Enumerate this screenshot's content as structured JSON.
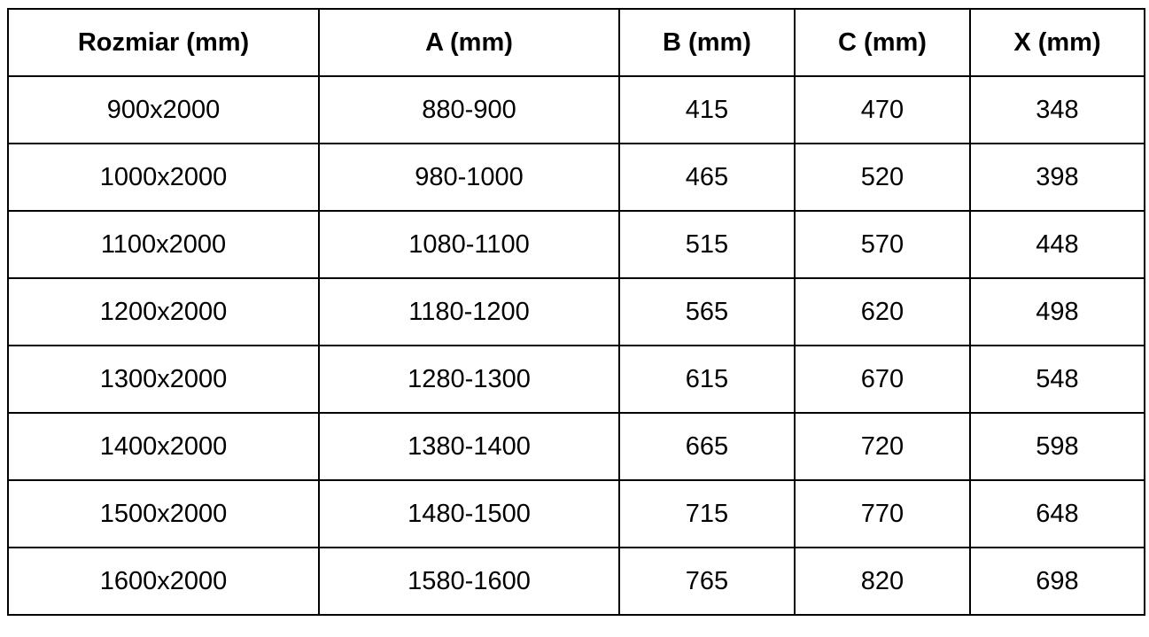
{
  "table": {
    "headers": [
      "Rozmiar (mm)",
      "A (mm)",
      "B (mm)",
      "C (mm)",
      "X (mm)"
    ],
    "rows": [
      [
        "900x2000",
        "880-900",
        "415",
        "470",
        "348"
      ],
      [
        "1000x2000",
        "980-1000",
        "465",
        "520",
        "398"
      ],
      [
        "1100x2000",
        "1080-1100",
        "515",
        "570",
        "448"
      ],
      [
        "1200x2000",
        "1180-1200",
        "565",
        "620",
        "498"
      ],
      [
        "1300x2000",
        "1280-1300",
        "615",
        "670",
        "548"
      ],
      [
        "1400x2000",
        "1380-1400",
        "665",
        "720",
        "598"
      ],
      [
        "1500x2000",
        "1480-1500",
        "715",
        "770",
        "648"
      ],
      [
        "1600x2000",
        "1580-1600",
        "765",
        "820",
        "698"
      ]
    ]
  }
}
